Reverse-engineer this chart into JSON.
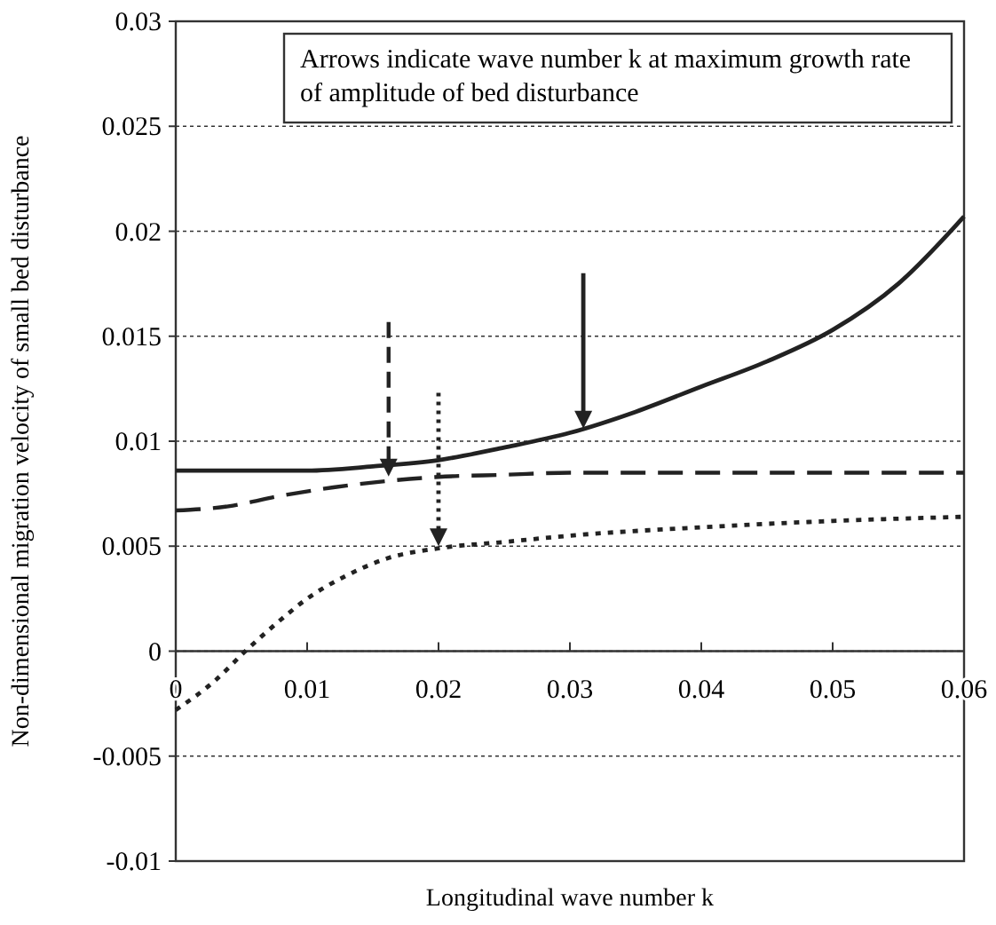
{
  "chart_data": {
    "type": "line",
    "xlabel": "Longitudinal wave number k",
    "ylabel": "Non-dimensional migration velocity of small bed disturbance",
    "annotations": [
      "Arrows indicate wave number k at maximum growth rate of amplitude of bed disturbance"
    ],
    "xlim": [
      0,
      0.06
    ],
    "xticks": [
      0,
      0.01,
      0.02,
      0.03,
      0.04,
      0.05,
      0.06
    ],
    "ylim": [
      -0.01,
      0.03
    ],
    "yticks": [
      -0.01,
      -0.005,
      0,
      0.005,
      0.01,
      0.015,
      0.02,
      0.025,
      0.03
    ],
    "grid": "y",
    "series": [
      {
        "color": "#222222",
        "line_style": "solid",
        "x": [
          0,
          0.005,
          0.01,
          0.015,
          0.02,
          0.025,
          0.03,
          0.035,
          0.04,
          0.045,
          0.05,
          0.055,
          0.06
        ],
        "values": [
          0.0086,
          0.0086,
          0.0086,
          0.0088,
          0.0091,
          0.0097,
          0.0104,
          0.0114,
          0.0126,
          0.0138,
          0.0153,
          0.0175,
          0.0207
        ]
      },
      {
        "color": "#222222",
        "line_style": "dashed",
        "x": [
          0,
          0.004,
          0.008,
          0.012,
          0.016,
          0.02,
          0.025,
          0.03,
          0.04,
          0.05,
          0.06
        ],
        "values": [
          0.0067,
          0.0069,
          0.0074,
          0.0078,
          0.0081,
          0.0083,
          0.0084,
          0.0085,
          0.0085,
          0.0085,
          0.0085
        ]
      },
      {
        "color": "#222222",
        "line_style": "dotted",
        "x": [
          0,
          0.003,
          0.0053,
          0.008,
          0.01,
          0.013,
          0.016,
          0.02,
          0.025,
          0.03,
          0.04,
          0.05,
          0.06
        ],
        "values": [
          -0.0028,
          -0.0014,
          0,
          0.0015,
          0.0025,
          0.0036,
          0.0044,
          0.0049,
          0.0052,
          0.0055,
          0.0059,
          0.0062,
          0.0064
        ]
      }
    ]
  }
}
